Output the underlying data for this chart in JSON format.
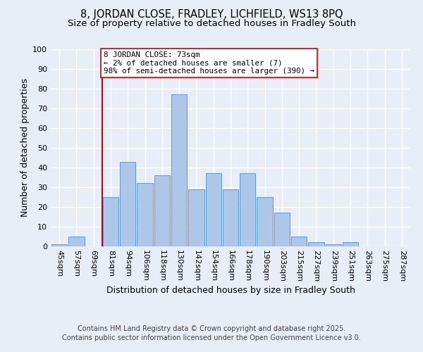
{
  "title1": "8, JORDAN CLOSE, FRADLEY, LICHFIELD, WS13 8PQ",
  "title2": "Size of property relative to detached houses in Fradley South",
  "xlabel": "Distribution of detached houses by size in Fradley South",
  "ylabel": "Number of detached properties",
  "bin_labels": [
    "45sqm",
    "57sqm",
    "69sqm",
    "81sqm",
    "94sqm",
    "106sqm",
    "118sqm",
    "130sqm",
    "142sqm",
    "154sqm",
    "166sqm",
    "178sqm",
    "190sqm",
    "203sqm",
    "215sqm",
    "227sqm",
    "239sqm",
    "251sqm",
    "263sqm",
    "275sqm",
    "287sqm"
  ],
  "bar_heights": [
    1,
    5,
    0,
    25,
    43,
    32,
    36,
    77,
    29,
    37,
    29,
    37,
    25,
    17,
    5,
    2,
    1,
    2,
    0,
    0,
    0
  ],
  "bar_color": "#aec6e8",
  "bar_edge_color": "#5b9bd5",
  "vline_color": "#cc0000",
  "annotation_text": "8 JORDAN CLOSE: 73sqm\n← 2% of detached houses are smaller (7)\n98% of semi-detached houses are larger (390) →",
  "annotation_box_color": "#ffffff",
  "annotation_box_edge": "#cc0000",
  "ylim": [
    0,
    100
  ],
  "yticks": [
    0,
    10,
    20,
    30,
    40,
    50,
    60,
    70,
    80,
    90,
    100
  ],
  "footer1": "Contains HM Land Registry data © Crown copyright and database right 2025.",
  "footer2": "Contains public sector information licensed under the Open Government Licence v3.0.",
  "bg_color": "#e8eef8",
  "grid_color": "#ffffff",
  "title1_fontsize": 10.5,
  "title2_fontsize": 9.5,
  "axis_label_fontsize": 9,
  "tick_fontsize": 8,
  "footer_fontsize": 7
}
